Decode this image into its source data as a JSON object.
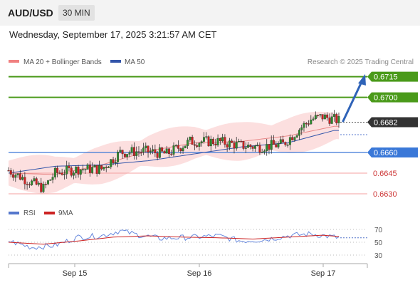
{
  "header": {
    "pair": "AUD/USD",
    "timeframe": "30 MIN"
  },
  "datetime": "Wednesday, September 17, 2025 3:21:57 AM CET",
  "legend": {
    "ma20": "MA 20 + Bollinger Bands",
    "ma50": "MA 50",
    "rsi": "RSI",
    "rsi_ma": "9MA"
  },
  "copyright": "Research © 2025 Trading Central",
  "colors": {
    "resistance": "#4a9a1a",
    "support": "#3a78d8",
    "support_light": "#f4a0a0",
    "current": "#333333",
    "arrow": "#2f63b8",
    "bull": "#2e8b2e",
    "bear": "#cc2222",
    "ma50": "#3355aa",
    "ma20": "#e88888",
    "band": "#fbd4d4",
    "rsi": "#6688dd",
    "rsi_ma": "#cc2222"
  },
  "chart_data": [
    {
      "type": "candlestick",
      "x_ticks": [
        "Sep 15",
        "Sep 16",
        "Sep 17"
      ],
      "ylim": [
        0.6622,
        0.6722
      ],
      "levels": [
        {
          "value": 0.6715,
          "label": "0.6715",
          "kind": "resistance"
        },
        {
          "value": 0.67,
          "label": "0.6700",
          "kind": "resistance"
        },
        {
          "value": 0.6682,
          "label": "0.6682",
          "kind": "current"
        },
        {
          "value": 0.666,
          "label": "0.6660",
          "kind": "support"
        },
        {
          "value": 0.6645,
          "label": "0.6645",
          "kind": "support_light"
        },
        {
          "value": 0.663,
          "label": "0.6630",
          "kind": "support_light"
        }
      ],
      "series": [
        {
          "name": "MA 20 + Bollinger Bands",
          "anchors": [
            [
              0,
              0.6645
            ],
            [
              20,
              0.6644
            ],
            [
              40,
              0.6651
            ],
            [
              60,
              0.6661
            ],
            [
              80,
              0.6667
            ],
            [
              100,
              0.6668
            ],
            [
              120,
              0.6672
            ],
            [
              140,
              0.6679
            ]
          ]
        },
        {
          "name": "MA 50",
          "anchors": [
            [
              0,
              0.6645
            ],
            [
              20,
              0.665
            ],
            [
              40,
              0.6651
            ],
            [
              60,
              0.6654
            ],
            [
              80,
              0.6659
            ],
            [
              100,
              0.6664
            ],
            [
              120,
              0.6667
            ],
            [
              140,
              0.6676
            ]
          ]
        }
      ],
      "candles_anchor_close": [
        [
          0,
          0.6647
        ],
        [
          10,
          0.6638
        ],
        [
          15,
          0.6634
        ],
        [
          20,
          0.6645
        ],
        [
          30,
          0.6648
        ],
        [
          40,
          0.6648
        ],
        [
          48,
          0.666
        ],
        [
          58,
          0.6661
        ],
        [
          68,
          0.6659
        ],
        [
          78,
          0.6668
        ],
        [
          90,
          0.6668
        ],
        [
          100,
          0.6665
        ],
        [
          108,
          0.6664
        ],
        [
          118,
          0.6666
        ],
        [
          125,
          0.6677
        ],
        [
          130,
          0.6684
        ],
        [
          135,
          0.6686
        ],
        [
          140,
          0.6684
        ],
        [
          142,
          0.6683
        ]
      ]
    },
    {
      "type": "line",
      "title": "RSI",
      "y_ticks": [
        70,
        50,
        30
      ],
      "ylim": [
        20,
        80
      ],
      "series": [
        {
          "name": "RSI",
          "anchors": [
            [
              0,
              52
            ],
            [
              10,
              42
            ],
            [
              20,
              45
            ],
            [
              30,
              58
            ],
            [
              40,
              60
            ],
            [
              48,
              68
            ],
            [
              55,
              62
            ],
            [
              65,
              56
            ],
            [
              80,
              58
            ],
            [
              90,
              60
            ],
            [
              100,
              52
            ],
            [
              110,
              54
            ],
            [
              120,
              60
            ],
            [
              130,
              63
            ],
            [
              140,
              58
            ],
            [
              142,
              57
            ]
          ]
        },
        {
          "name": "9MA",
          "anchors": [
            [
              0,
              50
            ],
            [
              15,
              47
            ],
            [
              30,
              52
            ],
            [
              45,
              58
            ],
            [
              60,
              60
            ],
            [
              75,
              58
            ],
            [
              90,
              57
            ],
            [
              105,
              55
            ],
            [
              120,
              58
            ],
            [
              135,
              61
            ],
            [
              142,
              59
            ]
          ]
        }
      ]
    }
  ]
}
